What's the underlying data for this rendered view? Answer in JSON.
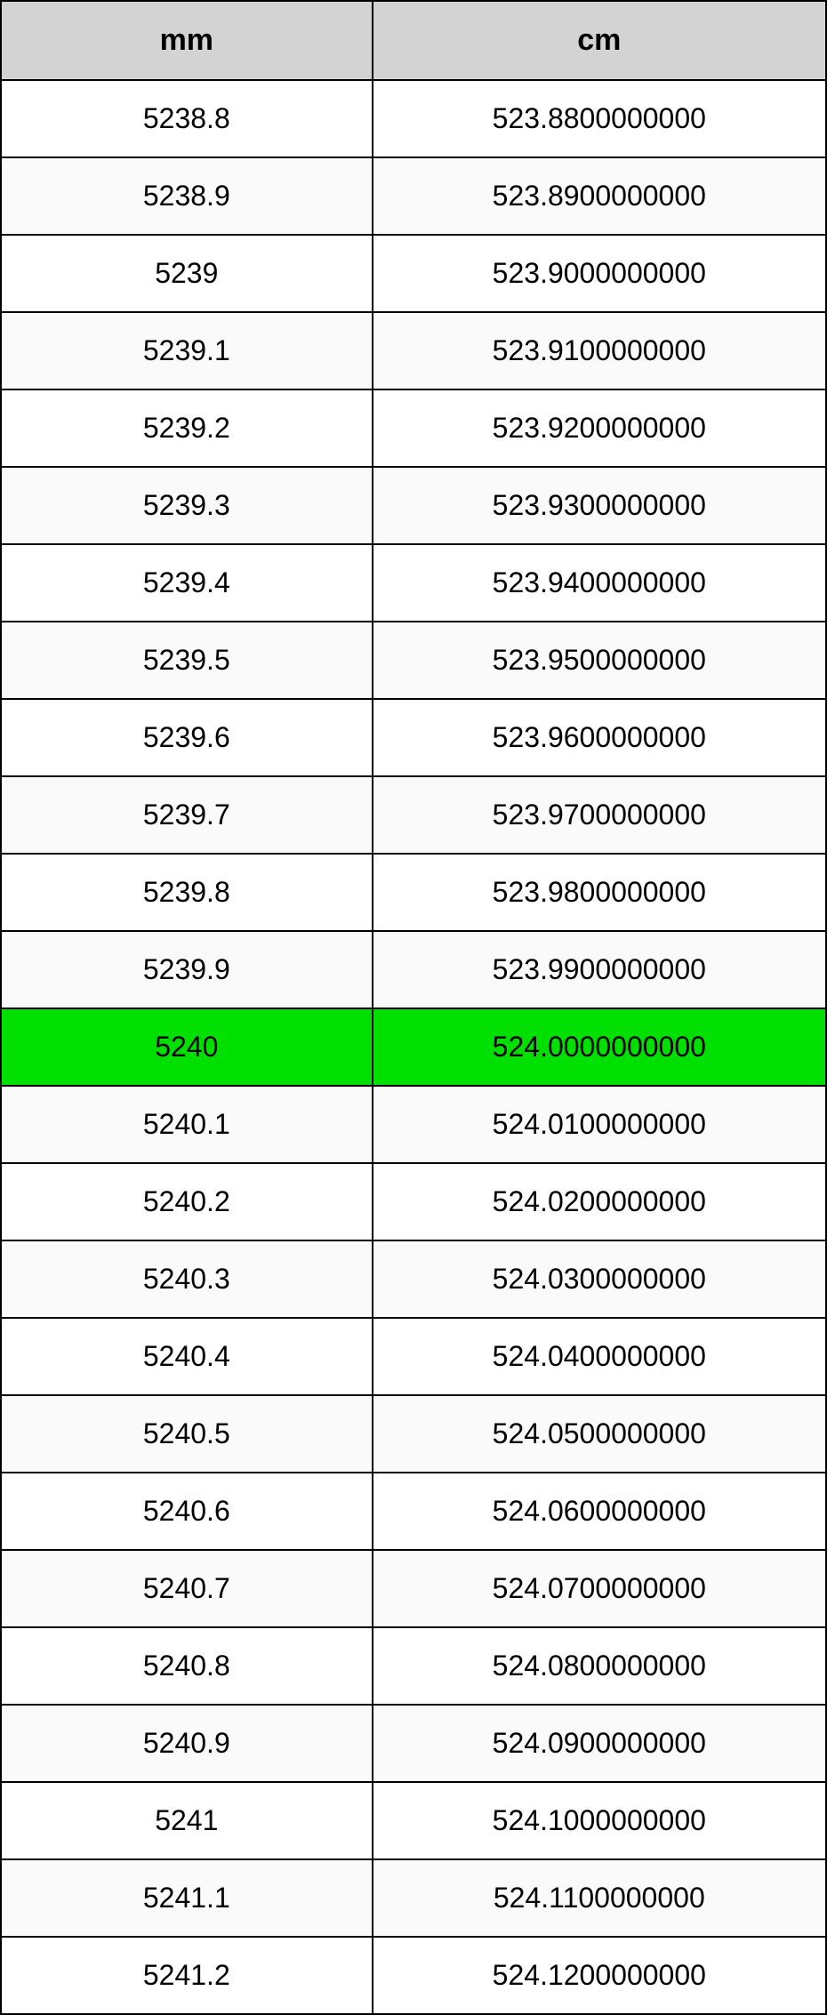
{
  "table": {
    "type": "table",
    "columns": [
      {
        "key": "mm",
        "label": "mm",
        "width_pct": 45
      },
      {
        "key": "cm",
        "label": "cm",
        "width_pct": 55
      }
    ],
    "header_bg": "#d3d3d3",
    "border_color": "#000000",
    "row_alt_bg": "#fafafa",
    "row_bg": "#ffffff",
    "highlight_bg": "#00e000",
    "text_color": "#000000",
    "header_fontsize": 34,
    "cell_fontsize": 32,
    "font_family": "Arial",
    "highlight_index": 12,
    "rows": [
      {
        "mm": "5238.8",
        "cm": "523.8800000000"
      },
      {
        "mm": "5238.9",
        "cm": "523.8900000000"
      },
      {
        "mm": "5239",
        "cm": "523.9000000000"
      },
      {
        "mm": "5239.1",
        "cm": "523.9100000000"
      },
      {
        "mm": "5239.2",
        "cm": "523.9200000000"
      },
      {
        "mm": "5239.3",
        "cm": "523.9300000000"
      },
      {
        "mm": "5239.4",
        "cm": "523.9400000000"
      },
      {
        "mm": "5239.5",
        "cm": "523.9500000000"
      },
      {
        "mm": "5239.6",
        "cm": "523.9600000000"
      },
      {
        "mm": "5239.7",
        "cm": "523.9700000000"
      },
      {
        "mm": "5239.8",
        "cm": "523.9800000000"
      },
      {
        "mm": "5239.9",
        "cm": "523.9900000000"
      },
      {
        "mm": "5240",
        "cm": "524.0000000000"
      },
      {
        "mm": "5240.1",
        "cm": "524.0100000000"
      },
      {
        "mm": "5240.2",
        "cm": "524.0200000000"
      },
      {
        "mm": "5240.3",
        "cm": "524.0300000000"
      },
      {
        "mm": "5240.4",
        "cm": "524.0400000000"
      },
      {
        "mm": "5240.5",
        "cm": "524.0500000000"
      },
      {
        "mm": "5240.6",
        "cm": "524.0600000000"
      },
      {
        "mm": "5240.7",
        "cm": "524.0700000000"
      },
      {
        "mm": "5240.8",
        "cm": "524.0800000000"
      },
      {
        "mm": "5240.9",
        "cm": "524.0900000000"
      },
      {
        "mm": "5241",
        "cm": "524.1000000000"
      },
      {
        "mm": "5241.1",
        "cm": "524.1100000000"
      },
      {
        "mm": "5241.2",
        "cm": "524.1200000000"
      }
    ]
  }
}
